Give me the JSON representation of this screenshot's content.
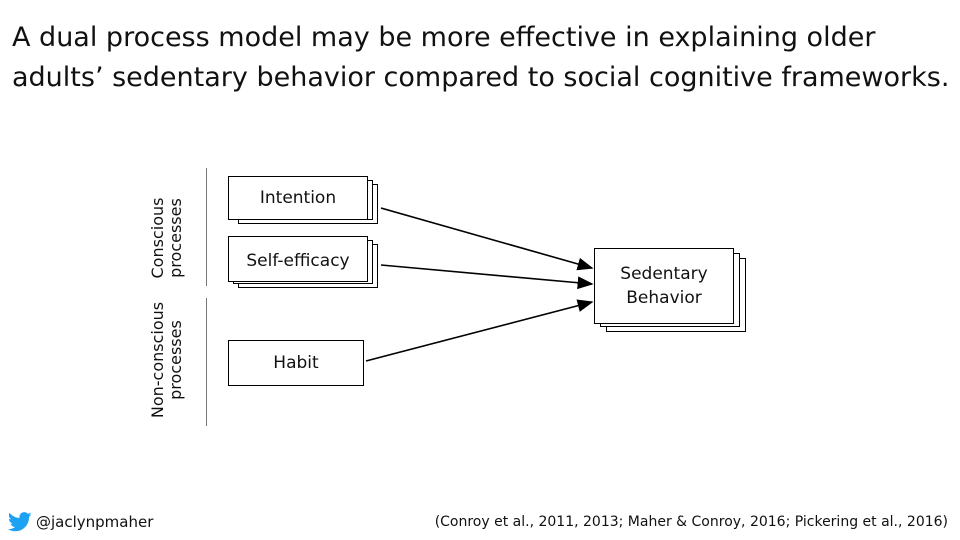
{
  "title": {
    "line1": "A dual process model may be more effective in explaining older",
    "line2": "adults’ sedentary behavior compared to social cognitive frameworks."
  },
  "labels": {
    "conscious": {
      "line1": "Conscious",
      "line2": "processes"
    },
    "nonconscious": {
      "line1": "Non-conscious",
      "line2": "processes"
    }
  },
  "nodes": {
    "intention": "Intention",
    "self_efficacy": "Self-efficacy",
    "habit": "Habit",
    "sedentary": {
      "line1": "Sedentary",
      "line2": "Behavior"
    }
  },
  "footer": {
    "icon": "twitter-bird-icon",
    "handle": "@jaclynpmaher",
    "citation": "(Conroy et al., 2011, 2013; Maher & Conroy, 2016; Pickering et al., 2016)"
  },
  "colors": {
    "text": "#111111",
    "border": "#000000",
    "twitter": "#1da1f2"
  }
}
